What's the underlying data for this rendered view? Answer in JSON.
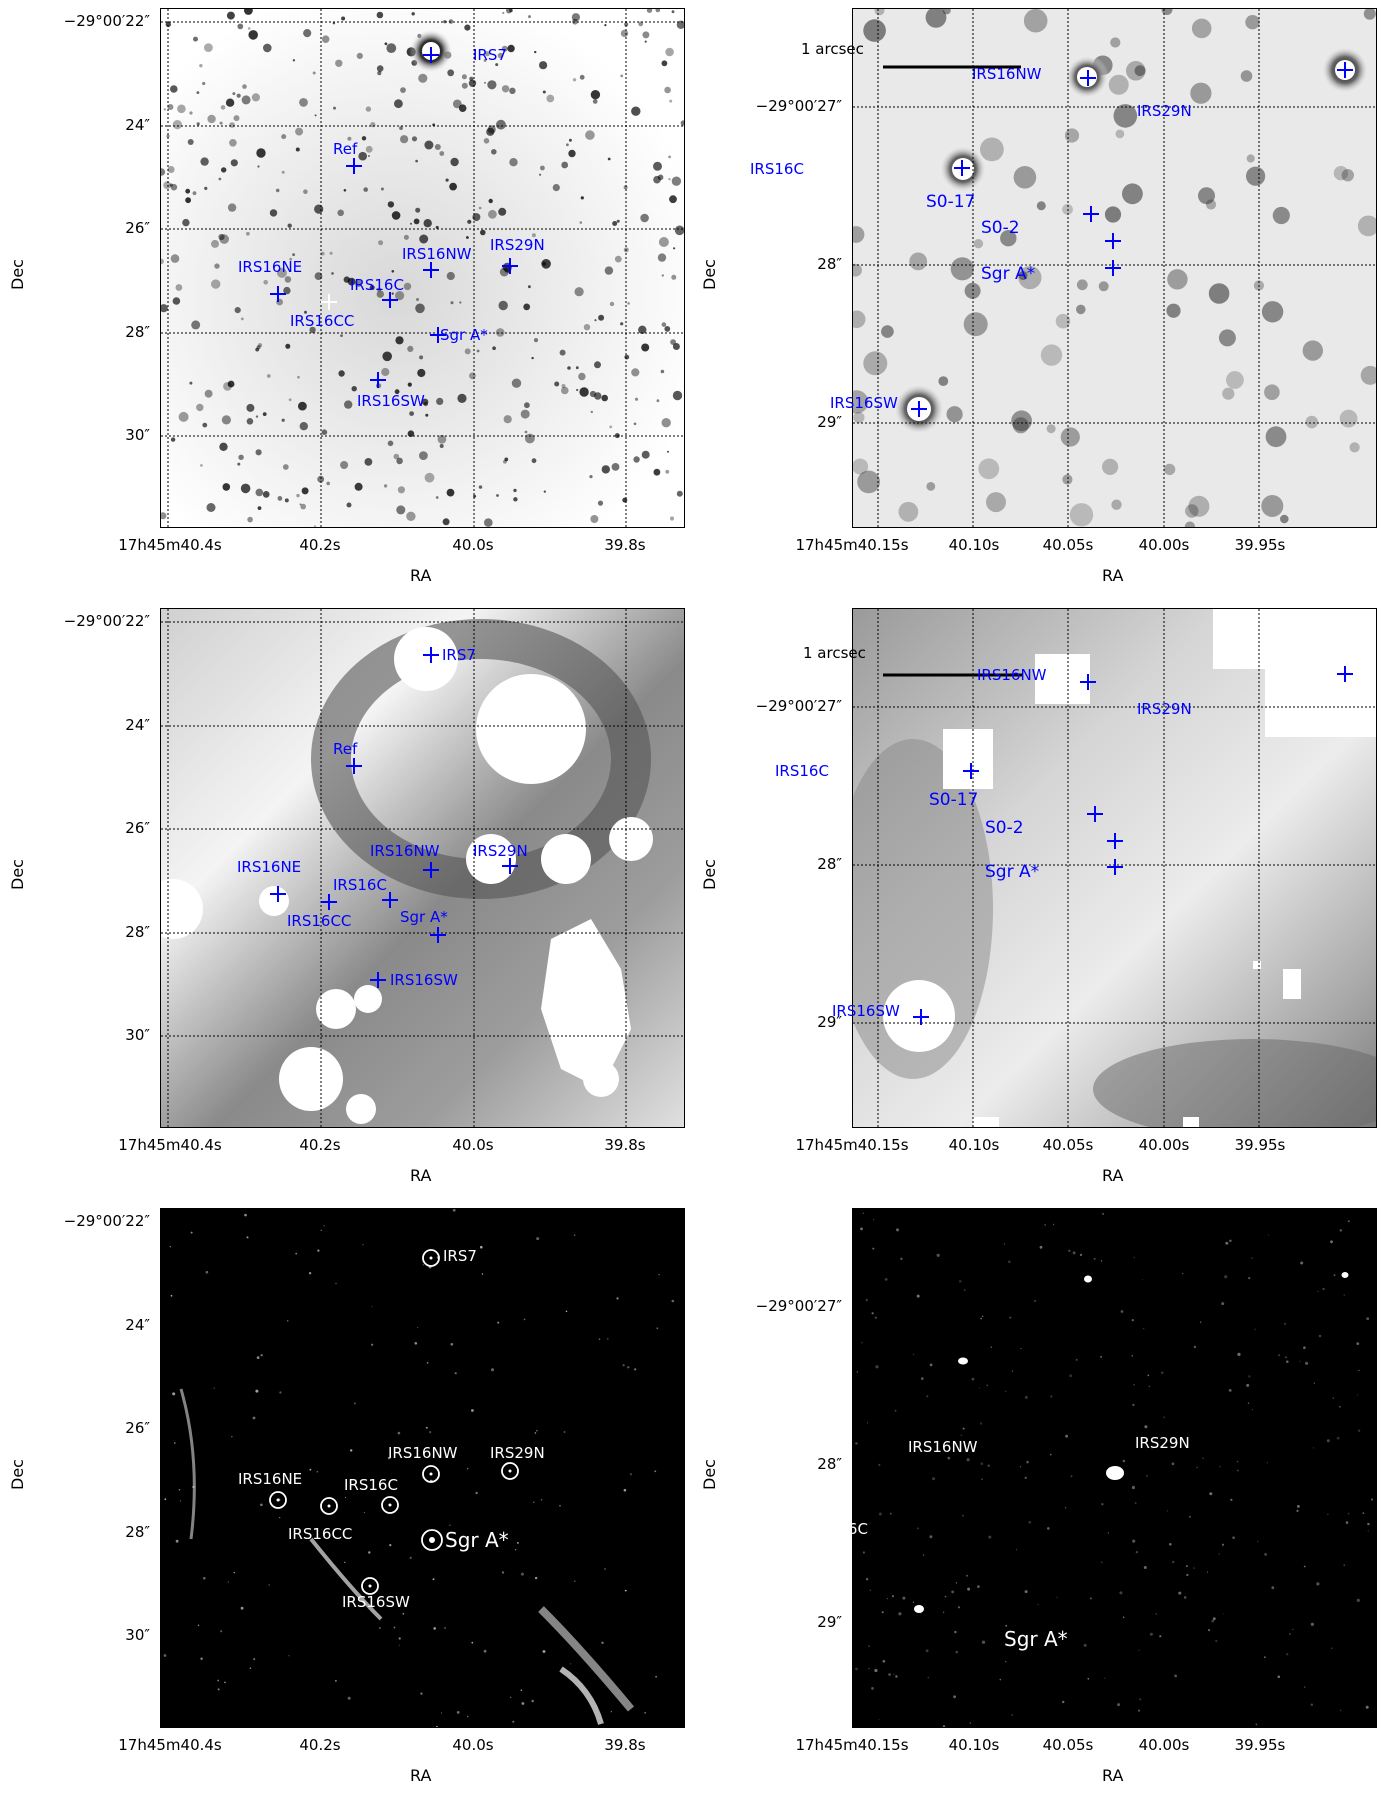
{
  "axis": {
    "xlabel": "RA",
    "ylabel": "Dec"
  },
  "wide": {
    "yticks": [
      "−29°00′22″",
      "24″",
      "26″",
      "28″",
      "30″"
    ],
    "xticks": [
      "17h45m40.4s",
      "40.2s",
      "40.0s",
      "39.8s"
    ]
  },
  "zoom": {
    "yticks": [
      "−29°00′27″",
      "28″",
      "29″"
    ],
    "xticks": [
      "17h45m40.15s",
      "40.10s",
      "40.05s",
      "40.00s",
      "39.95s"
    ]
  },
  "scalebar": "1 arcsec",
  "labels": {
    "irs7": "IRS7",
    "ref": "Ref",
    "irs16ne": "IRS16NE",
    "irs16cc": "IRS16CC",
    "irs16c": "IRS16C",
    "irs16nw": "IRS16NW",
    "irs29n": "IRS29N",
    "sgra": "Sgr A*",
    "irs16sw": "IRS16SW",
    "s017": "S0-17",
    "s02": "S0-2"
  },
  "colors": {
    "marker_blue": "#0000ff",
    "marker_white": "#ffffff"
  }
}
